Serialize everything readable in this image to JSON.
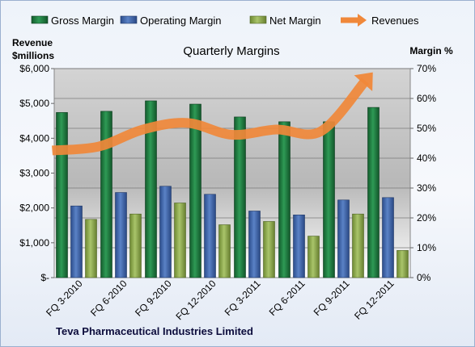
{
  "chart_data": {
    "type": "bar",
    "title": "Quarterly Margins",
    "footer": "Teva Pharmaceutical Industries Limited",
    "categories": [
      "FQ 3-2010",
      "FQ 6-2010",
      "FQ 9-2010",
      "FQ 12-2010",
      "FQ 3-2011",
      "FQ 6-2011",
      "FQ 9-2011",
      "FQ 12-2011"
    ],
    "left_axis": {
      "label_lines": [
        "Revenue",
        "$millions"
      ],
      "ylim": [
        0,
        6000
      ],
      "ticks": [
        0,
        1000,
        2000,
        3000,
        4000,
        5000,
        6000
      ],
      "tick_labels": [
        "$-",
        "$1,000",
        "$2,000",
        "$3,000",
        "$4,000",
        "$5,000",
        "$6,000"
      ]
    },
    "right_axis": {
      "label": "Margin %",
      "ylim": [
        0,
        70
      ],
      "ticks": [
        0,
        10,
        20,
        30,
        40,
        50,
        60,
        70
      ],
      "tick_labels": [
        "0%",
        "10%",
        "20%",
        "30%",
        "40%",
        "50%",
        "60%",
        "70%"
      ]
    },
    "series": [
      {
        "name": "Gross Margin",
        "axis": "right",
        "kind": "bar",
        "color": "#1f7a3e",
        "values": [
          55.3,
          55.7,
          59.2,
          58.1,
          53.8,
          52.2,
          52.2,
          57.0
        ]
      },
      {
        "name": "Operating Margin",
        "axis": "right",
        "kind": "bar",
        "color": "#3c63a8",
        "values": [
          24.0,
          28.5,
          30.6,
          27.9,
          22.3,
          21.0,
          26.0,
          26.8
        ]
      },
      {
        "name": "Net Margin",
        "axis": "right",
        "kind": "bar",
        "color": "#8aa84a",
        "values": [
          19.5,
          21.3,
          25.0,
          17.7,
          18.8,
          13.9,
          21.3,
          9.1
        ]
      },
      {
        "name": "Revenues",
        "axis": "left",
        "kind": "line",
        "color": "#f0883a",
        "values": [
          3650,
          3760,
          4250,
          4440,
          4100,
          4250,
          4200,
          5650
        ]
      }
    ],
    "legend_position": "top",
    "grid": true
  }
}
